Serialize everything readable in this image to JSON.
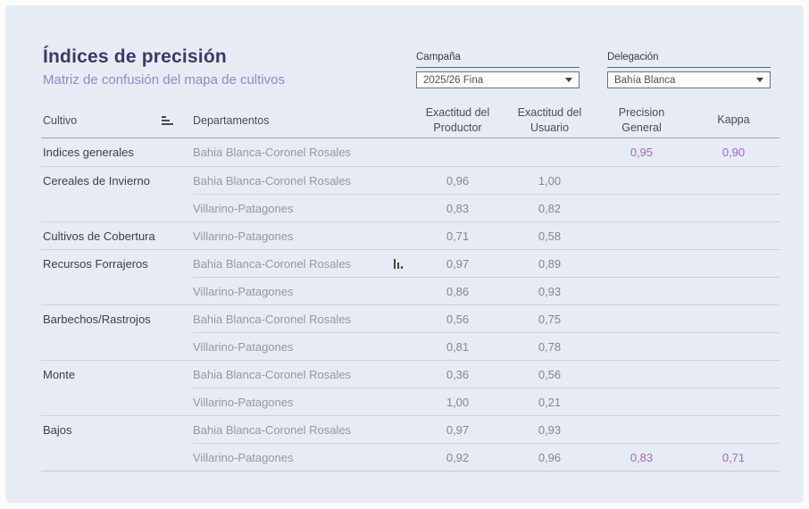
{
  "page": {
    "title": "Índices de precisión",
    "subtitle": "Matriz de confusión del mapa de cultivos"
  },
  "filters": [
    {
      "label": "Campaña",
      "value": "2025/26 Fina"
    },
    {
      "label": "Delegación",
      "value": "Bahía Blanca"
    }
  ],
  "icons": {
    "cultivo_sort": "sort-bars-icon",
    "row_mini_chart": "bar-chart-icon",
    "dropdown_caret": "chevron-down"
  },
  "colors": {
    "panel_bg": "#e7ebf4",
    "title": "#3b3966",
    "subtitle": "#8d8cc2",
    "accent_value": "#9a69d2",
    "row_separator": "#ccd0da",
    "header_separator": "#9aa0ac"
  },
  "table": {
    "columns": [
      "Cultivo",
      "Departamentos",
      "Exactitud del Productor",
      "Exactitud del Usuario",
      "Precision General",
      "Kappa"
    ],
    "rows": [
      {
        "cultivo": "Indices generales",
        "departamento": "Bahia Blanca-Coronel Rosales",
        "productor": "",
        "usuario": "",
        "precision_general": "0,95",
        "kappa": "0,90",
        "new_group": true,
        "chart_icon": false
      },
      {
        "cultivo": "Cereales de Invierno",
        "departamento": "Bahia Blanca-Coronel Rosales",
        "productor": "0,96",
        "usuario": "1,00",
        "precision_general": "",
        "kappa": "",
        "new_group": true,
        "chart_icon": false
      },
      {
        "cultivo": "",
        "departamento": "Villarino-Patagones",
        "productor": "0,83",
        "usuario": "0,82",
        "precision_general": "",
        "kappa": "",
        "new_group": false,
        "chart_icon": false
      },
      {
        "cultivo": "Cultivos de Cobertura",
        "departamento": "Villarino-Patagones",
        "productor": "0,71",
        "usuario": "0,58",
        "precision_general": "",
        "kappa": "",
        "new_group": true,
        "chart_icon": false
      },
      {
        "cultivo": "Recursos Forrajeros",
        "departamento": "Bahia Blanca-Coronel Rosales",
        "productor": "0,97",
        "usuario": "0,89",
        "precision_general": "",
        "kappa": "",
        "new_group": true,
        "chart_icon": true
      },
      {
        "cultivo": "",
        "departamento": "Villarino-Patagones",
        "productor": "0,86",
        "usuario": "0,93",
        "precision_general": "",
        "kappa": "",
        "new_group": false,
        "chart_icon": false
      },
      {
        "cultivo": "Barbechos/Rastrojos",
        "departamento": "Bahia Blanca-Coronel Rosales",
        "productor": "0,56",
        "usuario": "0,75",
        "precision_general": "",
        "kappa": "",
        "new_group": true,
        "chart_icon": false
      },
      {
        "cultivo": "",
        "departamento": "Villarino-Patagones",
        "productor": "0,81",
        "usuario": "0,78",
        "precision_general": "",
        "kappa": "",
        "new_group": false,
        "chart_icon": false
      },
      {
        "cultivo": "Monte",
        "departamento": "Bahia Blanca-Coronel Rosales",
        "productor": "0,36",
        "usuario": "0,56",
        "precision_general": "",
        "kappa": "",
        "new_group": true,
        "chart_icon": false
      },
      {
        "cultivo": "",
        "departamento": "Villarino-Patagones",
        "productor": "1,00",
        "usuario": "0,21",
        "precision_general": "",
        "kappa": "",
        "new_group": false,
        "chart_icon": false
      },
      {
        "cultivo": "Bajos",
        "departamento": "Bahia Blanca-Coronel Rosales",
        "productor": "0,97",
        "usuario": "0,93",
        "precision_general": "",
        "kappa": "",
        "new_group": true,
        "chart_icon": false
      },
      {
        "cultivo": "",
        "departamento": "Villarino-Patagones",
        "productor": "0,92",
        "usuario": "0,96",
        "precision_general": "0,83",
        "kappa": "0,71",
        "new_group": false,
        "chart_icon": false
      }
    ]
  }
}
